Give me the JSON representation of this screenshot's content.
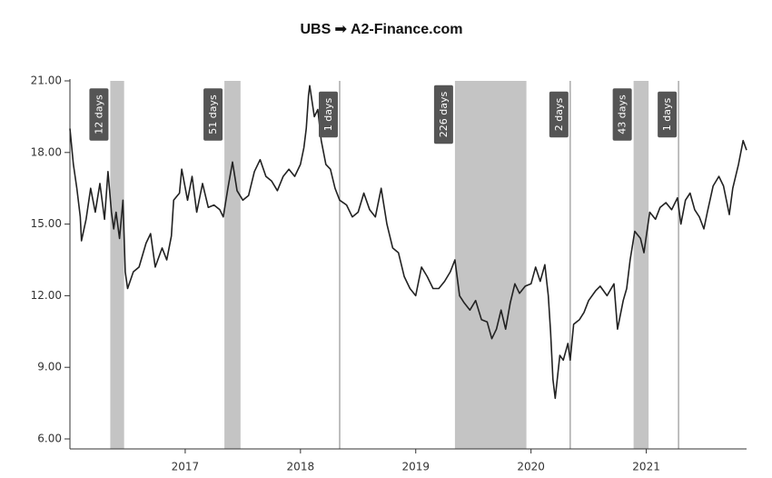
{
  "chart_data": {
    "type": "line",
    "title": "UBS ➟ A2-Finance.com",
    "color": "#222222",
    "x": [
      2016.0,
      2016.03,
      2016.06,
      2016.09,
      2016.1,
      2016.14,
      2016.18,
      2016.22,
      2016.26,
      2016.3,
      2016.33,
      2016.36,
      2016.38,
      2016.4,
      2016.43,
      2016.46,
      2016.48,
      2016.5,
      2016.55,
      2016.6,
      2016.66,
      2016.7,
      2016.74,
      2016.8,
      2016.84,
      2016.88,
      2016.9,
      2016.95,
      2016.97,
      2017.02,
      2017.06,
      2017.1,
      2017.15,
      2017.2,
      2017.25,
      2017.3,
      2017.33,
      2017.37,
      2017.41,
      2017.45,
      2017.5,
      2017.55,
      2017.6,
      2017.65,
      2017.7,
      2017.75,
      2017.8,
      2017.85,
      2017.9,
      2017.95,
      2018.0,
      2018.03,
      2018.05,
      2018.07,
      2018.08,
      2018.12,
      2018.15,
      2018.18,
      2018.22,
      2018.26,
      2018.3,
      2018.34,
      2018.4,
      2018.45,
      2018.5,
      2018.55,
      2018.6,
      2018.65,
      2018.7,
      2018.75,
      2018.8,
      2018.85,
      2018.9,
      2018.95,
      2019.0,
      2019.05,
      2019.1,
      2019.15,
      2019.2,
      2019.25,
      2019.3,
      2019.34,
      2019.38,
      2019.42,
      2019.47,
      2019.52,
      2019.57,
      2019.62,
      2019.66,
      2019.7,
      2019.74,
      2019.78,
      2019.82,
      2019.86,
      2019.9,
      2019.95,
      2020.0,
      2020.04,
      2020.08,
      2020.12,
      2020.15,
      2020.17,
      2020.19,
      2020.21,
      2020.25,
      2020.28,
      2020.32,
      2020.34,
      2020.37,
      2020.42,
      2020.46,
      2020.5,
      2020.56,
      2020.6,
      2020.66,
      2020.72,
      2020.75,
      2020.8,
      2020.83,
      2020.86,
      2020.9,
      2020.95,
      2020.98,
      2021.0,
      2021.03,
      2021.08,
      2021.12,
      2021.17,
      2021.22,
      2021.27,
      2021.3,
      2021.34,
      2021.38,
      2021.42,
      2021.46,
      2021.5,
      2021.53,
      2021.58,
      2021.63,
      2021.67,
      2021.72,
      2021.75,
      2021.8,
      2021.84,
      2021.87
    ],
    "values": [
      19.0,
      17.5,
      16.5,
      15.3,
      14.3,
      15.2,
      16.5,
      15.5,
      16.7,
      15.2,
      17.2,
      15.5,
      14.8,
      15.5,
      14.4,
      16.0,
      13.0,
      12.3,
      13.0,
      13.2,
      14.2,
      14.6,
      13.2,
      14.0,
      13.5,
      14.5,
      16.0,
      16.3,
      17.3,
      16.0,
      17.0,
      15.5,
      16.7,
      15.7,
      15.8,
      15.6,
      15.3,
      16.5,
      17.6,
      16.4,
      16.0,
      16.2,
      17.2,
      17.7,
      17.0,
      16.8,
      16.4,
      17.0,
      17.3,
      17.0,
      17.5,
      18.2,
      19.0,
      20.4,
      20.8,
      19.5,
      19.8,
      18.5,
      17.5,
      17.3,
      16.5,
      16.0,
      15.8,
      15.3,
      15.5,
      16.3,
      15.6,
      15.3,
      16.5,
      15.0,
      14.0,
      13.8,
      12.8,
      12.3,
      12.0,
      13.2,
      12.8,
      12.3,
      12.3,
      12.6,
      13.0,
      13.5,
      12.0,
      11.7,
      11.4,
      11.8,
      11.0,
      10.9,
      10.2,
      10.6,
      11.4,
      10.6,
      11.7,
      12.5,
      12.1,
      12.4,
      12.5,
      13.2,
      12.6,
      13.3,
      12.0,
      10.5,
      8.5,
      7.7,
      9.5,
      9.3,
      10.0,
      9.3,
      10.8,
      11.0,
      11.3,
      11.8,
      12.2,
      12.4,
      12.0,
      12.5,
      10.6,
      11.8,
      12.3,
      13.5,
      14.7,
      14.4,
      13.8,
      14.5,
      15.5,
      15.2,
      15.7,
      15.9,
      15.6,
      16.1,
      15.0,
      16.0,
      16.3,
      15.6,
      15.3,
      14.8,
      15.5,
      16.6,
      17.0,
      16.6,
      15.4,
      16.5,
      17.5,
      18.5,
      18.1
    ],
    "xlim": [
      2016.0,
      2021.87
    ],
    "xticks": [
      2017,
      2018,
      2019,
      2020,
      2021
    ],
    "ylim": [
      6,
      21
    ],
    "yticks": [
      {
        "value": 6,
        "label": "6.00"
      },
      {
        "value": 9,
        "label": "9.00"
      },
      {
        "value": 12,
        "label": "12.00"
      },
      {
        "value": 15,
        "label": "15.00"
      },
      {
        "value": 18,
        "label": "18.00"
      },
      {
        "value": 21,
        "label": "21.00"
      }
    ],
    "regions": [
      {
        "start": 2016.35,
        "end": 2016.47,
        "label": "12 days"
      },
      {
        "start": 2017.34,
        "end": 2017.48,
        "label": "51 days"
      },
      {
        "start": 2018.34,
        "end": 2018.34,
        "label": "1 days"
      },
      {
        "start": 2019.34,
        "end": 2019.96,
        "label": "226 days"
      },
      {
        "start": 2020.34,
        "end": 2020.34,
        "label": "2 days"
      },
      {
        "start": 2020.89,
        "end": 2021.02,
        "label": "43 days"
      },
      {
        "start": 2021.28,
        "end": 2021.28,
        "label": "1 days"
      }
    ]
  }
}
